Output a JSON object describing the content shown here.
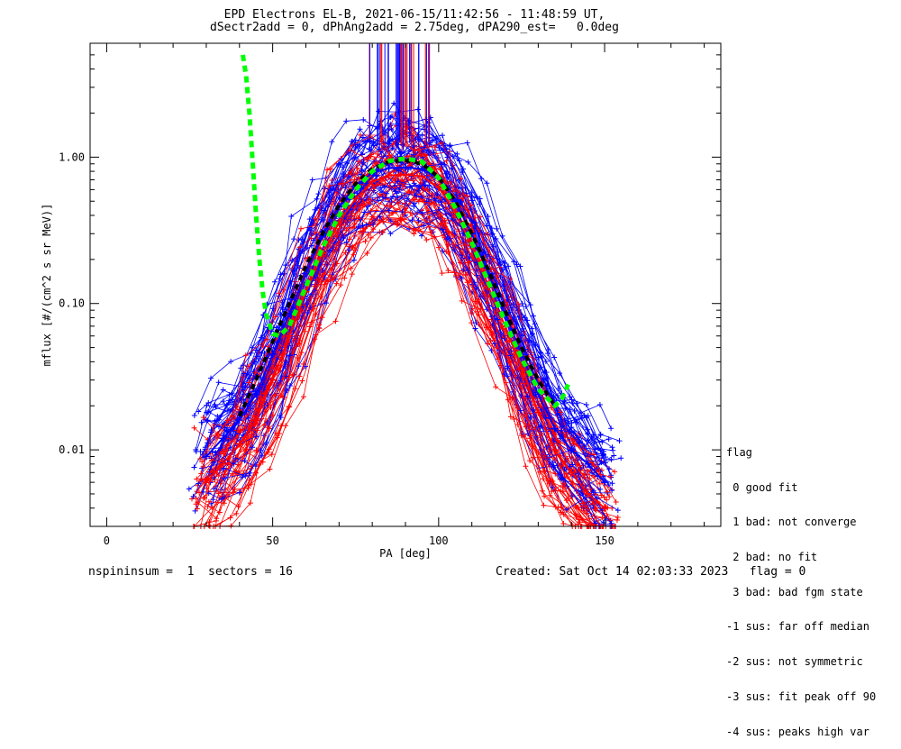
{
  "title_line1": "EPD Electrons EL-B, 2021-06-15/11:42:56 - 11:48:59 UT,",
  "title_line2": "dSectr2add = 0, dPhAng2add = 2.75deg, dPA290_est=   0.0deg",
  "footer_left": "nspininsum =  1  sectors = 16",
  "footer_right": "Created: Sat Oct 14 02:03:33 2023   flag = 0",
  "legend": {
    "title": "flag",
    "items": [
      " 0 good fit",
      " 1 bad: not converge",
      " 2 bad: no fit",
      " 3 bad: bad fgm state",
      "-1 sus: far off median",
      "-2 sus: not symmetric",
      "-3 sus: fit peak off 90",
      "-4 sus: peaks high var"
    ]
  },
  "colors": {
    "series_red": "#ff0000",
    "series_blue": "#0000ff",
    "fit_green": "#00ff00",
    "median_black": "#000000"
  },
  "chart_data": {
    "type": "line",
    "xlabel": "PA [deg]",
    "ylabel": "mflux [#/(cm^2 s sr MeV)]",
    "xlim": [
      -5,
      185
    ],
    "ylim": [
      0.003,
      6.0
    ],
    "yscale": "log",
    "xticks": [
      0,
      50,
      100,
      150
    ],
    "xtick_labels": [
      "0",
      "50",
      "100",
      "150"
    ],
    "yticks": [
      0.01,
      0.1,
      1.0
    ],
    "ytick_labels": [
      "0.01",
      "0.10",
      "1.00"
    ],
    "series": [
      {
        "color": "red",
        "x": [
          30,
          35,
          40,
          45,
          50,
          55,
          60,
          65,
          70,
          75,
          80,
          85,
          90,
          95,
          100,
          105,
          110,
          115,
          120,
          125,
          130,
          135,
          140,
          145,
          150
        ],
        "y": [
          0.006,
          0.008,
          0.011,
          0.016,
          0.03,
          0.06,
          0.12,
          0.22,
          0.36,
          0.52,
          0.68,
          0.75,
          0.76,
          0.74,
          0.62,
          0.42,
          0.25,
          0.13,
          0.07,
          0.036,
          0.018,
          0.01,
          0.007,
          0.005,
          0.004
        ]
      },
      {
        "color": "blue",
        "x": [
          30,
          35,
          40,
          45,
          50,
          55,
          60,
          65,
          70,
          75,
          80,
          85,
          90,
          95,
          100,
          105,
          110,
          115,
          120,
          125,
          130,
          135,
          140,
          145,
          150
        ],
        "y": [
          0.009,
          0.012,
          0.016,
          0.024,
          0.045,
          0.085,
          0.16,
          0.29,
          0.46,
          0.64,
          0.78,
          0.84,
          0.85,
          0.83,
          0.72,
          0.5,
          0.3,
          0.16,
          0.085,
          0.045,
          0.024,
          0.014,
          0.01,
          0.008,
          0.006
        ]
      },
      {
        "color": "black",
        "x": [
          40,
          45,
          50,
          55,
          60,
          65,
          70,
          75,
          80,
          85,
          90,
          95,
          100,
          105,
          110,
          115,
          120,
          125,
          130,
          135
        ],
        "y": [
          0.017,
          0.03,
          0.055,
          0.1,
          0.18,
          0.3,
          0.47,
          0.66,
          0.83,
          0.93,
          0.95,
          0.9,
          0.73,
          0.5,
          0.3,
          0.17,
          0.09,
          0.05,
          0.03,
          0.02
        ]
      },
      {
        "color": "green",
        "x": [
          41,
          42,
          43,
          44,
          45,
          46,
          47,
          48,
          50,
          52,
          55,
          60,
          65,
          70,
          75,
          80,
          85,
          90,
          95,
          100,
          105,
          110,
          115,
          120,
          125,
          130,
          135,
          137,
          139
        ],
        "y": [
          5.0,
          3.6,
          2.0,
          0.9,
          0.4,
          0.2,
          0.12,
          0.085,
          0.062,
          0.06,
          0.07,
          0.13,
          0.24,
          0.4,
          0.6,
          0.8,
          0.94,
          0.98,
          0.93,
          0.72,
          0.45,
          0.26,
          0.14,
          0.075,
          0.042,
          0.026,
          0.02,
          0.022,
          0.028
        ]
      }
    ]
  }
}
